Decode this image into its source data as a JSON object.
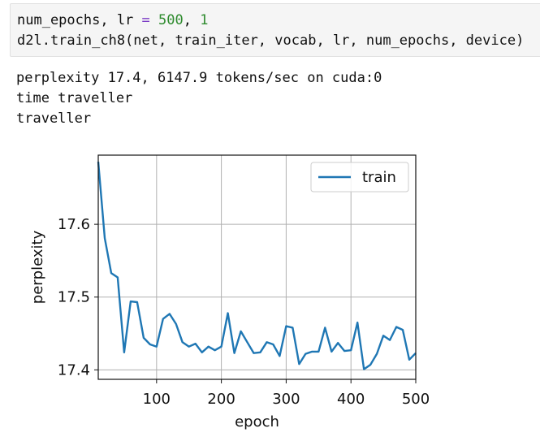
{
  "code": {
    "line1": {
      "var": "num_epochs, lr ",
      "op": "=",
      "n1": " 500",
      "sep": ", ",
      "n2": "1"
    },
    "line2": "d2l.train_ch8(net, train_iter, vocab, lr, num_epochs, device)"
  },
  "output": [
    "perplexity 17.4, 6147.9 tokens/sec on cuda:0",
    "time traveller",
    "traveller"
  ],
  "chart_data": {
    "type": "line",
    "xlabel": "epoch",
    "ylabel": "perplexity",
    "xlim": [
      10,
      500
    ],
    "ylim": [
      17.387,
      17.695
    ],
    "xticks": [
      100,
      200,
      300,
      400,
      500
    ],
    "yticks": [
      17.4,
      17.5,
      17.6
    ],
    "grid": true,
    "legend": "top-right",
    "series": [
      {
        "name": "train",
        "color": "#1f77b4",
        "x": [
          10,
          20,
          30,
          40,
          50,
          60,
          70,
          80,
          90,
          100,
          110,
          120,
          130,
          140,
          150,
          160,
          170,
          180,
          190,
          200,
          210,
          220,
          230,
          240,
          250,
          260,
          270,
          280,
          290,
          300,
          310,
          320,
          330,
          340,
          350,
          360,
          370,
          380,
          390,
          400,
          410,
          420,
          430,
          440,
          450,
          460,
          470,
          480,
          490,
          500
        ],
        "y": [
          17.686,
          17.581,
          17.533,
          17.527,
          17.424,
          17.494,
          17.493,
          17.444,
          17.435,
          17.432,
          17.47,
          17.477,
          17.463,
          17.438,
          17.432,
          17.436,
          17.424,
          17.432,
          17.427,
          17.432,
          17.478,
          17.423,
          17.453,
          17.438,
          17.423,
          17.424,
          17.438,
          17.435,
          17.419,
          17.46,
          17.458,
          17.408,
          17.422,
          17.425,
          17.425,
          17.458,
          17.425,
          17.437,
          17.426,
          17.427,
          17.465,
          17.401,
          17.407,
          17.422,
          17.447,
          17.441,
          17.459,
          17.455,
          17.414,
          17.423
        ]
      }
    ]
  }
}
